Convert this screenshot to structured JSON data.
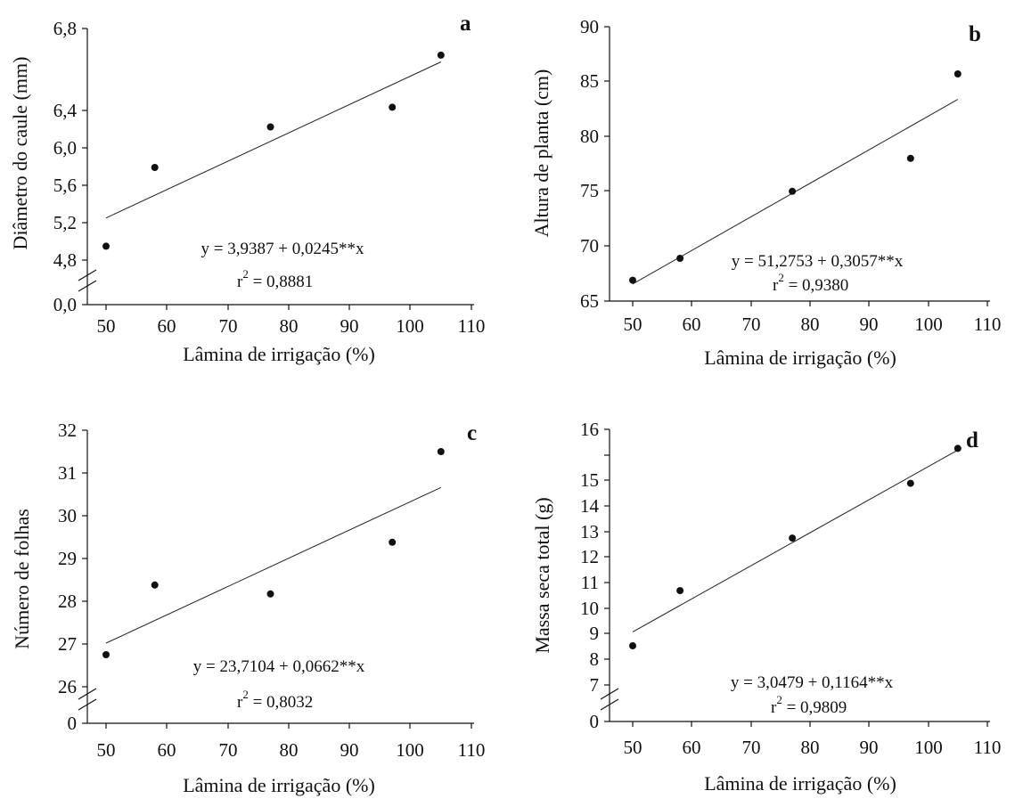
{
  "chart_data": [
    {
      "type": "scatter",
      "panel": "a",
      "xlabel": "Lâmina de irrigação (%)",
      "ylabel": "Diâmetro do caule (mm)",
      "xlim": [
        45,
        110
      ],
      "x_ticks": [
        "50",
        "60",
        "70",
        "80",
        "90",
        "100",
        "110"
      ],
      "y_ticks": [
        "0,0",
        "4,8",
        "5,2",
        "5,6",
        "6,0",
        "6,4",
        "6,8"
      ],
      "ylim_broken": [
        4.5,
        6.8
      ],
      "y_break_base": 0.0,
      "x": [
        50,
        58,
        77,
        97,
        105
      ],
      "y": [
        4.92,
        5.6,
        5.95,
        6.12,
        6.57
      ],
      "fit": {
        "intercept": 3.9387,
        "slope": 0.0245
      },
      "equation": "y = 3,9387 + 0,0245**x",
      "r2_value": " = 0,8881"
    },
    {
      "type": "scatter",
      "panel": "b",
      "xlabel": "Lâmina de irrigação (%)",
      "ylabel": "Altura de planta (cm)",
      "xlim": [
        45,
        110
      ],
      "x_ticks": [
        "50",
        "60",
        "70",
        "80",
        "90",
        "100",
        "110"
      ],
      "y_ticks": [
        "65",
        "70",
        "75",
        "80",
        "85",
        "90"
      ],
      "ylim": [
        65,
        90
      ],
      "x": [
        50,
        58,
        77,
        97,
        105
      ],
      "y": [
        66.9,
        68.9,
        75.0,
        78.0,
        85.7
      ],
      "fit": {
        "intercept": 51.2753,
        "slope": 0.3057
      },
      "equation": "y = 51,2753 + 0,3057**x",
      "r2_value": " = 0,9380"
    },
    {
      "type": "scatter",
      "panel": "c",
      "xlabel": "Lâmina de irrigação (%)",
      "ylabel": "Número de folhas",
      "xlim": [
        45,
        110
      ],
      "x_ticks": [
        "50",
        "60",
        "70",
        "80",
        "90",
        "100",
        "110"
      ],
      "y_ticks": [
        "0",
        "26",
        "27",
        "28",
        "29",
        "30",
        "31",
        "32"
      ],
      "ylim_broken": [
        25.8,
        32
      ],
      "y_break_base": 0,
      "x": [
        50,
        58,
        77,
        97,
        105
      ],
      "y": [
        26.75,
        28.38,
        28.17,
        29.38,
        31.5
      ],
      "fit": {
        "intercept": 23.7104,
        "slope": 0.0662
      },
      "equation": "y = 23,7104 + 0,0662**x",
      "r2_value": " = 0,8032"
    },
    {
      "type": "scatter",
      "panel": "d",
      "xlabel": "Lâmina de irrigação (%)",
      "ylabel": "Massa seca total (g)",
      "xlim": [
        45,
        110
      ],
      "x_ticks": [
        "50",
        "60",
        "70",
        "80",
        "90",
        "100",
        "110"
      ],
      "y_ticks": [
        "0",
        "7",
        "8",
        "9",
        "10",
        "11",
        "12",
        "13",
        "14",
        "15",
        "16"
      ],
      "ylim_broken": [
        6.6,
        16
      ],
      "y_break_base": 0,
      "x": [
        50,
        58,
        77,
        97,
        105
      ],
      "y": [
        8.38,
        10.32,
        12.17,
        14.1,
        15.33
      ],
      "fit": {
        "intercept": 3.0479,
        "slope": 0.1164
      },
      "equation": "y = 3,0479 + 0,1164**x",
      "r2_value": " = 0,9809"
    }
  ]
}
